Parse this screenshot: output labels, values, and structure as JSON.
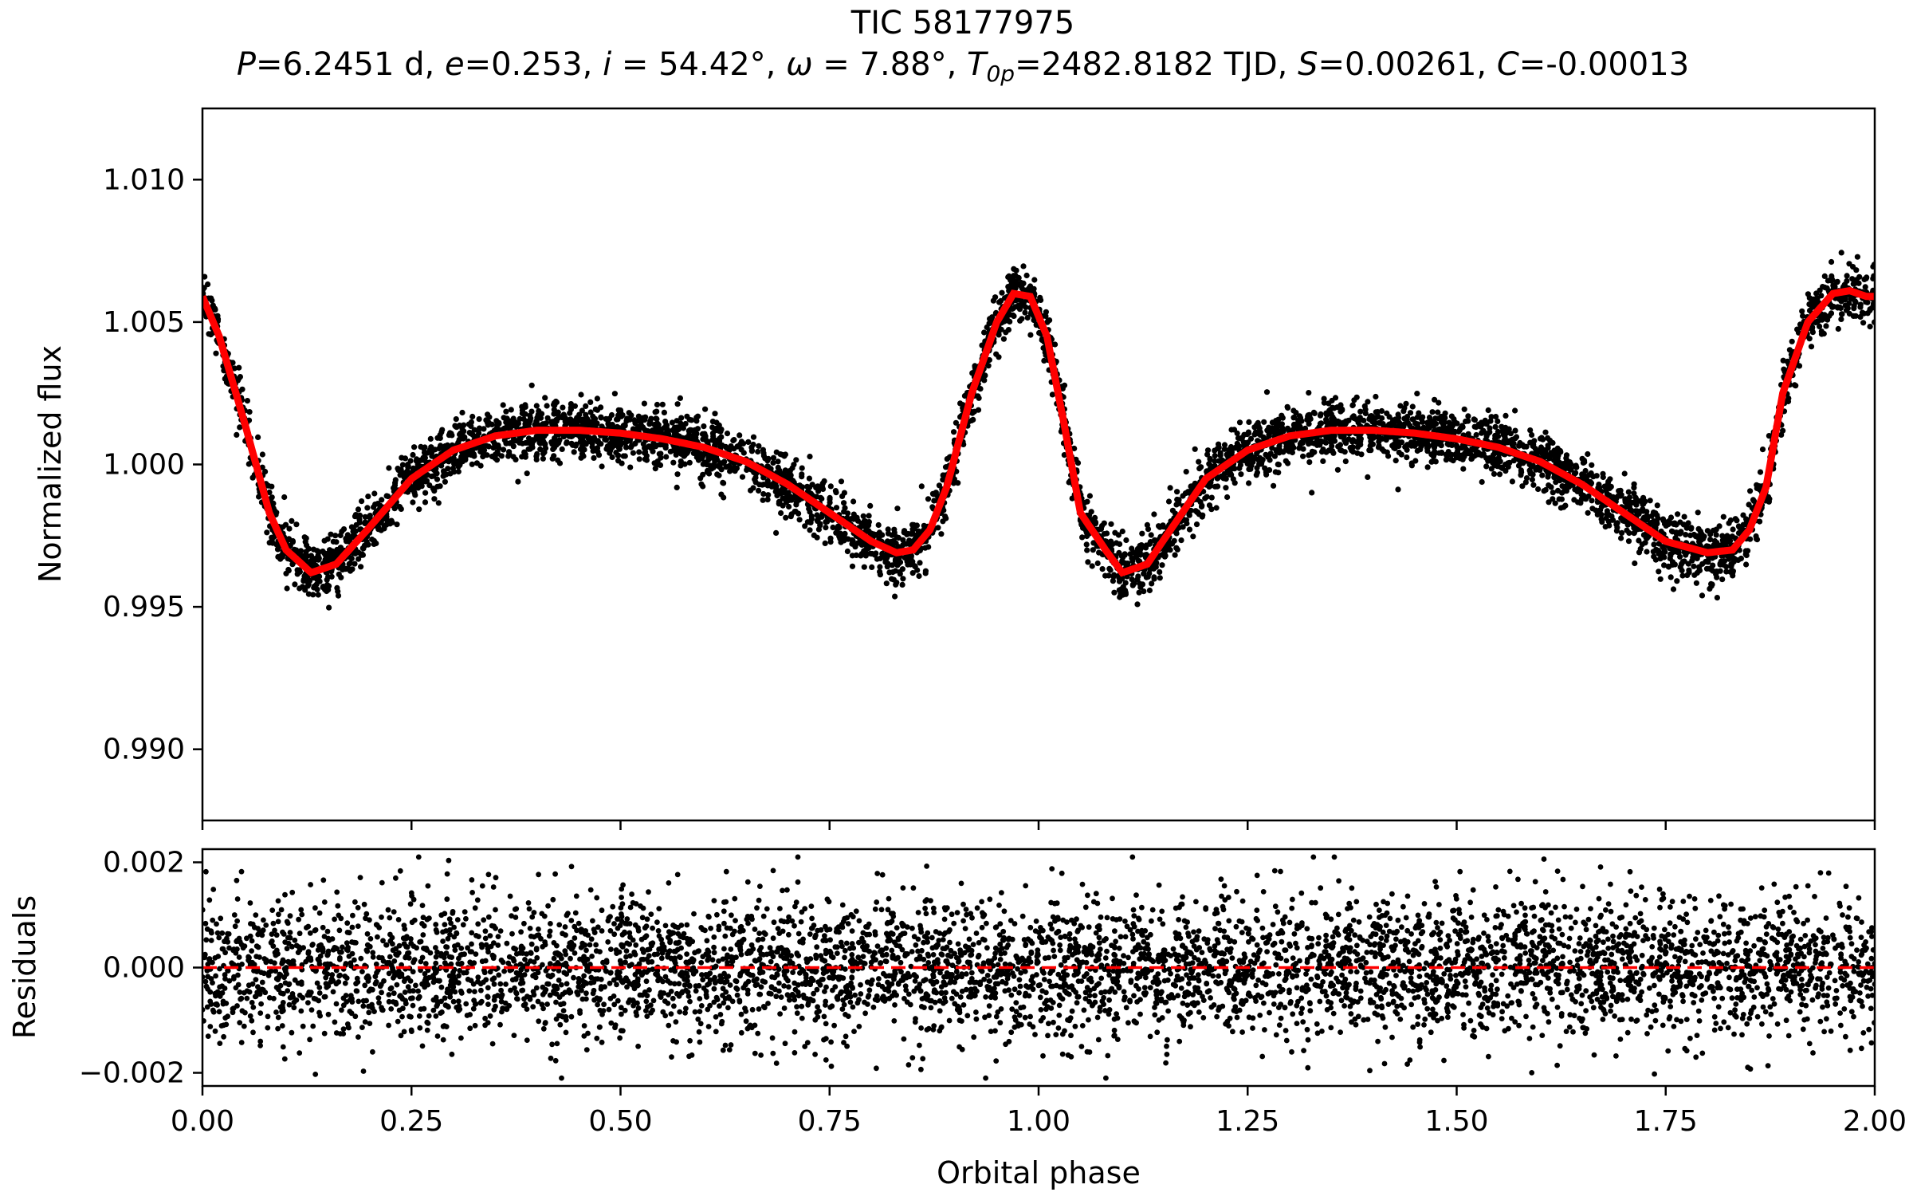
{
  "chart_data": {
    "title": "TIC 58177975",
    "subtitle": {
      "P": "6.2451 d",
      "e": "0.253",
      "i": "54.42°",
      "omega": "7.88°",
      "T0p": "2482.8182 TJD",
      "S": "0.00261",
      "C": "-0.00013"
    },
    "xlabel": "Orbital phase",
    "xlim": [
      0.0,
      2.0
    ],
    "xticks": [
      "0.00",
      "0.25",
      "0.50",
      "0.75",
      "1.00",
      "1.25",
      "1.50",
      "1.75",
      "2.00"
    ],
    "panels": [
      {
        "name": "flux",
        "type": "scatter+line",
        "ylabel": "Normalized flux",
        "ylim": [
          0.9875,
          1.0125
        ],
        "yticks": [
          "0.990",
          "0.995",
          "1.000",
          "1.005",
          "1.010"
        ],
        "model": {
          "color": "#ff0000",
          "x": [
            0.0,
            0.02,
            0.05,
            0.08,
            0.1,
            0.13,
            0.16,
            0.2,
            0.25,
            0.3,
            0.35,
            0.4,
            0.45,
            0.5,
            0.55,
            0.6,
            0.65,
            0.7,
            0.75,
            0.8,
            0.83,
            0.85,
            0.87,
            0.89,
            0.92,
            0.95,
            0.97,
            0.99,
            1.01,
            1.03,
            1.05,
            1.08,
            1.1,
            1.13,
            1.16,
            1.2,
            1.25,
            1.3,
            1.35,
            1.4,
            1.45,
            1.5,
            1.55,
            1.6,
            1.65,
            1.7,
            1.75,
            1.8,
            1.83,
            1.85,
            1.87,
            1.89,
            1.92,
            1.95,
            1.97,
            1.99,
            2.0
          ],
          "y": [
            1.0059,
            1.0045,
            1.0015,
            0.9983,
            0.997,
            0.9962,
            0.9965,
            0.9978,
            0.9995,
            1.0005,
            1.001,
            1.0012,
            1.0012,
            1.0011,
            1.0009,
            1.0006,
            1.0001,
            0.9993,
            0.9983,
            0.9973,
            0.9969,
            0.997,
            0.9977,
            0.9992,
            1.0025,
            1.005,
            1.006,
            1.0059,
            1.0045,
            1.0015,
            0.9983,
            0.997,
            0.9962,
            0.9965,
            0.9978,
            0.9995,
            1.0005,
            1.001,
            1.0012,
            1.0012,
            1.0011,
            1.0009,
            1.0006,
            1.0001,
            0.9993,
            0.9983,
            0.9973,
            0.9969,
            0.997,
            0.9977,
            0.9992,
            1.0025,
            1.005,
            1.006,
            1.0061,
            1.0059,
            1.0059
          ]
        },
        "points": {
          "color": "#000000",
          "count": 5200,
          "scatter_sigma": 0.0005
        }
      },
      {
        "name": "residuals",
        "type": "scatter",
        "ylabel": "Residuals",
        "ylim": [
          -0.00225,
          0.00225
        ],
        "yticks": [
          "0.002",
          "0.000",
          "−0.002"
        ],
        "zero_line": {
          "y": 0.0,
          "color": "#ff0000",
          "style": "dashed"
        },
        "points": {
          "color": "#000000",
          "count": 5200,
          "scatter_sigma": 0.00065,
          "range": [
            -0.0021,
            0.0021
          ]
        }
      }
    ]
  }
}
